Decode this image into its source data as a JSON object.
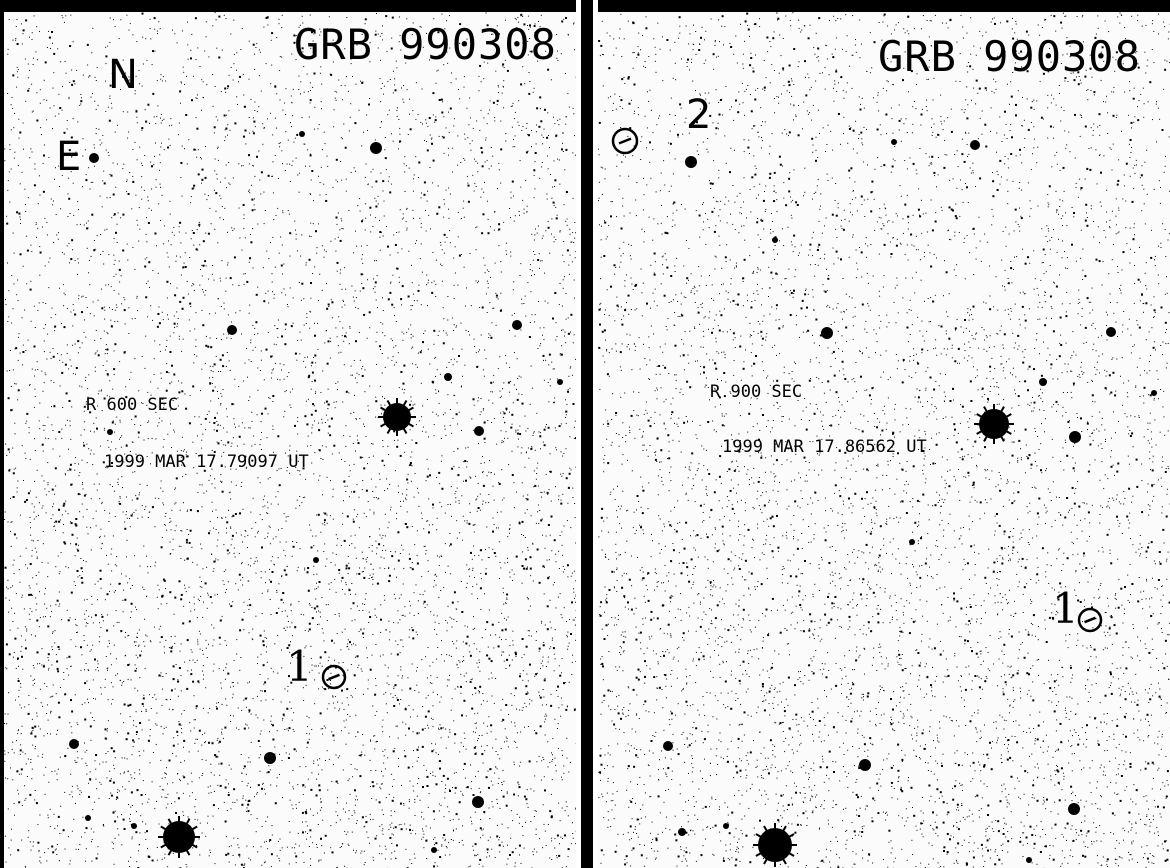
{
  "panels": [
    {
      "title": "GRB 990308",
      "compass_north": "N",
      "compass_east": "E",
      "filter_exposure": "R 600 SEC",
      "date": "1999 MAR 17.79097 UT",
      "marker_1": "1"
    },
    {
      "title": "GRB 990308",
      "filter_exposure": "R 900 SEC",
      "date": "1999 MAR 17.86562 UT",
      "marker_1": "1",
      "marker_2": "2"
    }
  ],
  "colors": {
    "background": "#ffffff",
    "ink": "#000000"
  }
}
